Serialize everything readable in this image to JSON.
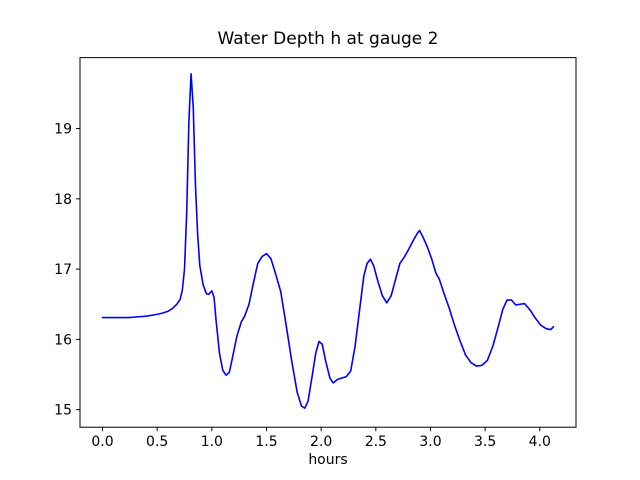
{
  "chart_data": {
    "type": "line",
    "title": "Water Depth h at gauge 2",
    "xlabel": "hours",
    "ylabel": "",
    "grid": false,
    "legend_position": "none",
    "background_color": "#ffffff",
    "spine_color": "#000000",
    "line_color": "#0000ff",
    "x_ticks": [
      0.0,
      0.5,
      1.0,
      1.5,
      2.0,
      2.5,
      3.0,
      3.5,
      4.0
    ],
    "x_tick_labels": [
      "0.0",
      "0.5",
      "1.0",
      "1.5",
      "2.0",
      "2.5",
      "3.0",
      "3.5",
      "4.0"
    ],
    "y_ticks": [
      15,
      16,
      17,
      18,
      19
    ],
    "y_tick_labels": [
      "15",
      "16",
      "17",
      "18",
      "19"
    ],
    "xlim": [
      -0.206,
      4.331
    ],
    "ylim": [
      14.75,
      20.01
    ],
    "series": [
      {
        "name": "h at gauge 2",
        "x": [
          0.0,
          0.08,
          0.16,
          0.24,
          0.32,
          0.4,
          0.48,
          0.54,
          0.6,
          0.64,
          0.68,
          0.71,
          0.73,
          0.75,
          0.77,
          0.79,
          0.81,
          0.83,
          0.85,
          0.87,
          0.89,
          0.92,
          0.95,
          0.97,
          1.0,
          1.02,
          1.04,
          1.07,
          1.1,
          1.13,
          1.16,
          1.19,
          1.23,
          1.27,
          1.3,
          1.34,
          1.38,
          1.42,
          1.46,
          1.5,
          1.54,
          1.58,
          1.63,
          1.68,
          1.73,
          1.78,
          1.82,
          1.85,
          1.88,
          1.92,
          1.95,
          1.98,
          2.01,
          2.04,
          2.08,
          2.11,
          2.15,
          2.19,
          2.23,
          2.27,
          2.31,
          2.35,
          2.39,
          2.42,
          2.45,
          2.48,
          2.52,
          2.56,
          2.6,
          2.64,
          2.68,
          2.72,
          2.76,
          2.8,
          2.84,
          2.88,
          2.9,
          2.93,
          2.97,
          3.01,
          3.05,
          3.08,
          3.12,
          3.17,
          3.22,
          3.27,
          3.32,
          3.37,
          3.42,
          3.47,
          3.52,
          3.57,
          3.62,
          3.66,
          3.7,
          3.74,
          3.78,
          3.82,
          3.86,
          3.91,
          3.96,
          4.01,
          4.06,
          4.1,
          4.125
        ],
        "y": [
          16.31,
          16.31,
          16.31,
          16.31,
          16.32,
          16.33,
          16.35,
          16.37,
          16.4,
          16.44,
          16.5,
          16.57,
          16.7,
          17.0,
          17.8,
          19.1,
          19.78,
          19.3,
          18.2,
          17.5,
          17.05,
          16.78,
          16.65,
          16.64,
          16.69,
          16.6,
          16.25,
          15.8,
          15.56,
          15.49,
          15.53,
          15.75,
          16.05,
          16.25,
          16.33,
          16.5,
          16.8,
          17.08,
          17.18,
          17.22,
          17.15,
          16.95,
          16.68,
          16.2,
          15.7,
          15.25,
          15.05,
          15.02,
          15.12,
          15.5,
          15.8,
          15.97,
          15.93,
          15.7,
          15.45,
          15.38,
          15.43,
          15.45,
          15.47,
          15.55,
          15.9,
          16.4,
          16.9,
          17.08,
          17.14,
          17.05,
          16.82,
          16.62,
          16.52,
          16.62,
          16.85,
          17.08,
          17.17,
          17.28,
          17.4,
          17.51,
          17.55,
          17.46,
          17.32,
          17.15,
          16.94,
          16.86,
          16.67,
          16.45,
          16.2,
          15.98,
          15.78,
          15.67,
          15.62,
          15.63,
          15.7,
          15.9,
          16.18,
          16.42,
          16.56,
          16.56,
          16.49,
          16.5,
          16.51,
          16.42,
          16.3,
          16.2,
          16.15,
          16.14,
          16.18
        ]
      }
    ]
  }
}
